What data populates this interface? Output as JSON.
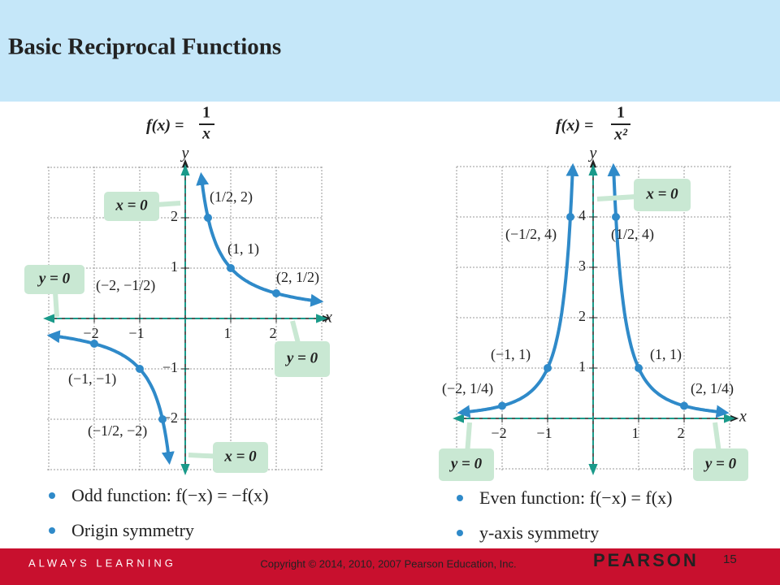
{
  "header": {
    "title": "Basic Reciprocal Functions"
  },
  "graphs": [
    {
      "formula": {
        "lhs": "f(x) =",
        "num": "1",
        "den": "x"
      },
      "x_label": "x",
      "y_label": "y",
      "x_ticks": [
        "−2",
        "−1",
        "1",
        "2"
      ],
      "y_ticks": [
        "2",
        "1",
        "−1",
        "−2"
      ],
      "callouts": [
        "x = 0",
        "y = 0",
        "y = 0",
        "x = 0"
      ],
      "points": [
        "(1/2, 2)",
        "(1, 1)",
        "(2, 1/2)",
        "(−2, −1/2)",
        "(−1, −1)",
        "(−1/2, −2)"
      ],
      "bullets": [
        "Odd function: f(−x) = −f(x)",
        "Origin symmetry"
      ]
    },
    {
      "formula": {
        "lhs": "f(x) =",
        "num": "1",
        "den": "x²"
      },
      "x_label": "x",
      "y_label": "y",
      "x_ticks": [
        "−2",
        "−1",
        "1",
        "2"
      ],
      "y_ticks": [
        "4",
        "3",
        "2",
        "1"
      ],
      "callouts": [
        "x = 0",
        "y = 0",
        "y = 0"
      ],
      "points": [
        "(−1/2, 4)",
        "(1/2, 4)",
        "(−1, 1)",
        "(1, 1)",
        "(−2, 1/4)",
        "(2, 1/4)"
      ],
      "bullets": [
        "Even function: f(−x) = f(x)",
        "y-axis symmetry"
      ]
    }
  ],
  "footer": {
    "tagline": "ALWAYS LEARNING",
    "copyright": "Copyright © 2014, 2010, 2007 Pearson Education, Inc.",
    "brand": "PEARSON",
    "page": "15"
  }
}
